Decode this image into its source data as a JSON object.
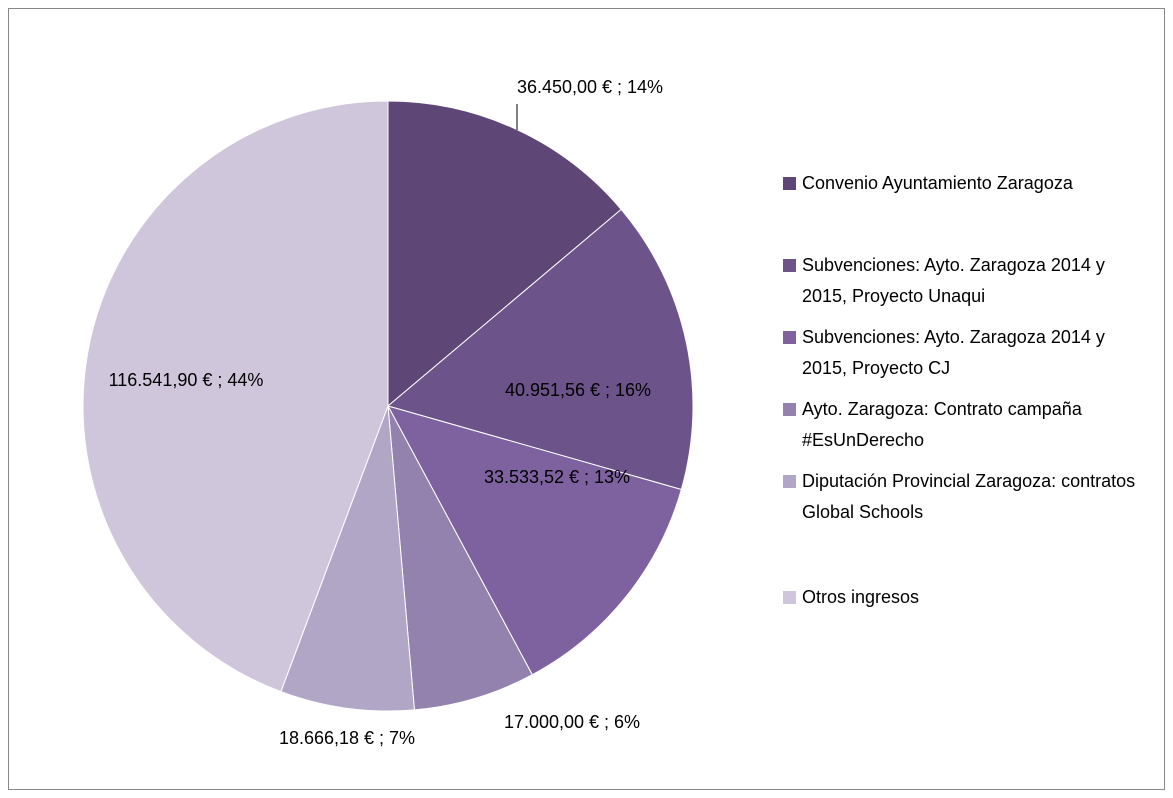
{
  "chart_data": {
    "type": "pie",
    "categories": [
      "Convenio Ayuntamiento Zaragoza",
      "Subvenciones: Ayto. Zaragoza 2014 y 2015, Proyecto Unaqui",
      "Subvenciones: Ayto. Zaragoza 2014 y 2015, Proyecto CJ",
      "Ayto. Zaragoza: Contrato campaña #EsUnDerecho",
      "Diputación Provincial Zaragoza: contratos Global Schools",
      "Otros ingresos"
    ],
    "values": [
      36450,
      40951.56,
      33533.52,
      17000,
      18666.18,
      116541.9
    ],
    "value_labels": [
      "36.450,00 € ; 14%",
      "40.951,56 € ; 16%",
      "33.533,52 € ; 13%",
      "17.000,00 € ; 6%",
      "18.666,18 € ; 7%",
      "116.541,90 € ; 44%"
    ],
    "colors": [
      "#5e4776",
      "#6c548b",
      "#7e62a0",
      "#9381ae",
      "#b1a6c6",
      "#cfc6db"
    ],
    "legend": "right"
  }
}
